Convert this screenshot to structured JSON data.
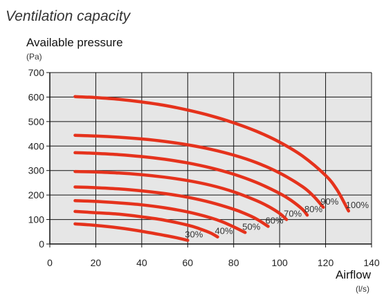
{
  "chart_data": {
    "type": "line",
    "title": "Ventilation capacity",
    "ylabel": "Available pressure",
    "yunit": "(Pa)",
    "xlabel": "Airflow",
    "xunit": "(l/s)",
    "xlim": [
      0,
      140
    ],
    "ylim": [
      0,
      700
    ],
    "xticks": [
      0,
      20,
      40,
      60,
      80,
      100,
      120,
      140
    ],
    "yticks": [
      0,
      100,
      200,
      300,
      400,
      500,
      600,
      700
    ],
    "grid": true,
    "background_color": "#e6e6e6",
    "line_color": "#e5321c",
    "series": [
      {
        "name": "30%",
        "x": [
          11,
          20,
          30,
          40,
          50,
          55,
          60
        ],
        "y": [
          82,
          76,
          66,
          52,
          35,
          26,
          15
        ]
      },
      {
        "name": "40%",
        "x": [
          11,
          20,
          30,
          40,
          50,
          60,
          65,
          70,
          73
        ],
        "y": [
          133,
          128,
          122,
          111,
          97,
          77,
          63,
          45,
          29
        ]
      },
      {
        "name": "50%",
        "x": [
          11,
          20,
          30,
          40,
          50,
          60,
          70,
          75,
          80,
          85
        ],
        "y": [
          177,
          174,
          168,
          160,
          148,
          131,
          107,
          91,
          70,
          47
        ]
      },
      {
        "name": "60%",
        "x": [
          11,
          20,
          30,
          40,
          50,
          60,
          70,
          80,
          85,
          90,
          95
        ],
        "y": [
          233,
          230,
          225,
          217,
          206,
          191,
          170,
          142,
          124,
          102,
          72
        ]
      },
      {
        "name": "70%",
        "x": [
          11,
          20,
          30,
          40,
          50,
          60,
          70,
          80,
          90,
          95,
          100,
          103
        ],
        "y": [
          296,
          294,
          290,
          283,
          273,
          259,
          240,
          213,
          177,
          154,
          125,
          100
        ]
      },
      {
        "name": "80%",
        "x": [
          11,
          20,
          30,
          40,
          50,
          60,
          70,
          80,
          90,
          100,
          105,
          110,
          112
        ],
        "y": [
          373,
          370,
          365,
          357,
          346,
          331,
          311,
          285,
          251,
          207,
          178,
          141,
          118
        ]
      },
      {
        "name": "90%",
        "x": [
          11,
          20,
          30,
          40,
          50,
          60,
          70,
          80,
          90,
          100,
          110,
          115,
          119
        ],
        "y": [
          444,
          441,
          436,
          429,
          419,
          405,
          387,
          363,
          332,
          290,
          234,
          193,
          150
        ]
      },
      {
        "name": "100%",
        "x": [
          11,
          20,
          30,
          40,
          50,
          60,
          70,
          80,
          90,
          100,
          110,
          120,
          125,
          130
        ],
        "y": [
          602,
          598,
          591,
          580,
          566,
          547,
          524,
          495,
          460,
          416,
          359,
          280,
          221,
          135
        ]
      }
    ]
  }
}
